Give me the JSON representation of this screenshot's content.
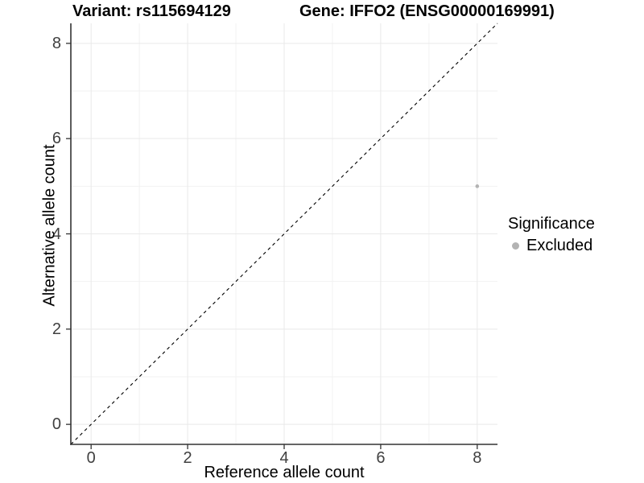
{
  "chart_data": {
    "type": "scatter",
    "titles": {
      "left": "Variant: rs115694129",
      "right": "Gene: IFFO2 (ENSG00000169991)"
    },
    "xlabel": "Reference allele count",
    "ylabel": "Alternative allele count",
    "xlim": [
      -0.42,
      8.42
    ],
    "ylim": [
      -0.42,
      8.42
    ],
    "x_ticks": [
      0,
      2,
      4,
      6,
      8
    ],
    "x_tick_labels": [
      "0",
      "2",
      "4",
      "6",
      "8"
    ],
    "y_ticks": [
      0,
      2,
      4,
      6,
      8
    ],
    "y_tick_labels": [
      "0",
      "2",
      "4",
      "6",
      "8"
    ],
    "x_minor_ticks": [
      1,
      3,
      5,
      7
    ],
    "y_minor_ticks": [
      1,
      3,
      5,
      7
    ],
    "grid": {
      "show": true,
      "major_color": "#e9e9e9",
      "minor_color": "#f2f2f2"
    },
    "reference_line": {
      "type": "abline",
      "slope": 1,
      "intercept": 0,
      "linestyle": "dashed",
      "color": "#000000"
    },
    "series": [
      {
        "name": "Excluded",
        "color": "#b3b3b3",
        "point_radius": 2.3,
        "points": [
          {
            "x": 8,
            "y": 5
          }
        ]
      }
    ],
    "legend": {
      "title": "Significance",
      "position": "right",
      "items": [
        {
          "label": "Excluded",
          "color": "#b3b3b3"
        }
      ]
    },
    "axis_color": "#333333",
    "background": "#ffffff"
  }
}
